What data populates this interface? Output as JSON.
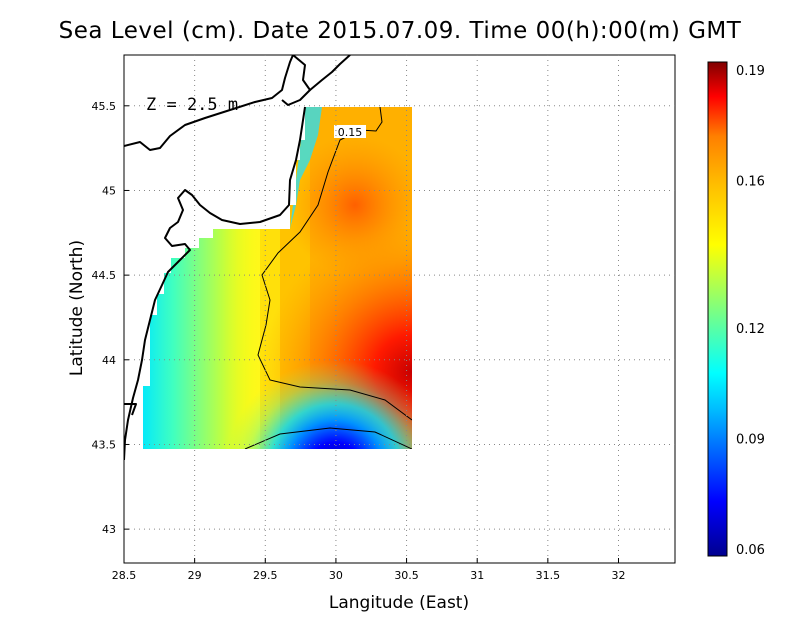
{
  "title": "Sea Level (cm). Date 2015.07.09. Time 00(h):00(m) GMT",
  "annotation": "Z = 2.5 m",
  "contour_label": "0.15",
  "chart_data": {
    "type": "heatmap",
    "xlabel": "Langitude (East)",
    "ylabel": "Latitude (North)",
    "xlim": [
      28.5,
      32.4
    ],
    "ylim": [
      42.8,
      45.8
    ],
    "x_ticks": [
      "28.5",
      "29",
      "29.5",
      "30",
      "30.5",
      "31",
      "31.5",
      "32"
    ],
    "y_ticks": [
      "43",
      "43.5",
      "44",
      "44.5",
      "45",
      "45.5"
    ],
    "grid": true,
    "colorbar": {
      "range": [
        0.06,
        0.19
      ],
      "ticks": [
        "0.19",
        "0.16",
        "0.12",
        "0.09",
        "0.06"
      ],
      "colors": [
        "#00008f",
        "#0000ff",
        "#00bfff",
        "#00ffff",
        "#7fff7f",
        "#ffff00",
        "#ffbf00",
        "#ff7f00",
        "#ff0000",
        "#800000"
      ]
    },
    "data_region": {
      "lon": [
        28.62,
        30.55
      ],
      "lat": [
        43.48,
        45.5
      ]
    },
    "contour_levels": [
      0.09,
      0.15
    ]
  }
}
